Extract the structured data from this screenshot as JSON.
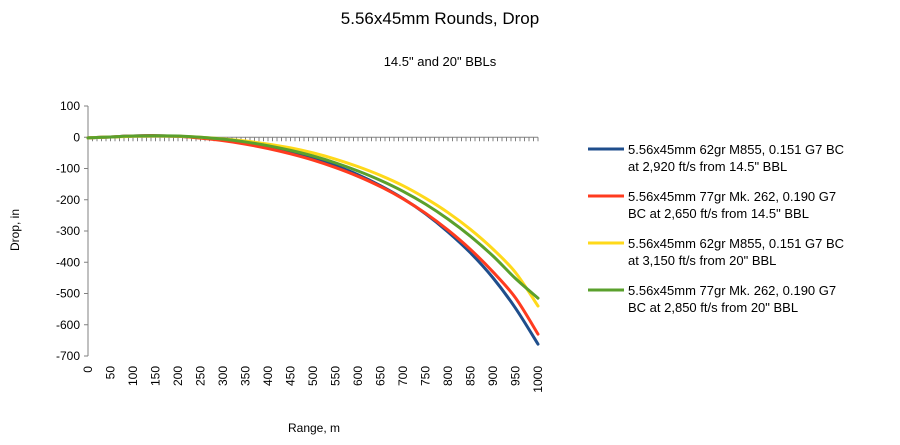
{
  "chart_data": {
    "type": "line",
    "title": "5.56x45mm Rounds, Drop",
    "subtitle": "14.5\" and 20\" BBLs",
    "xlabel": "Range, m",
    "ylabel": "Drop, in",
    "xlim": [
      0,
      1000
    ],
    "ylim": [
      -700,
      100
    ],
    "x_ticks": [
      "0",
      "50",
      "100",
      "150",
      "200",
      "250",
      "300",
      "350",
      "400",
      "450",
      "500",
      "550",
      "600",
      "650",
      "700",
      "750",
      "800",
      "850",
      "900",
      "950",
      "1000"
    ],
    "y_ticks": [
      "100",
      "0",
      "-100",
      "-200",
      "-300",
      "-400",
      "-500",
      "-600",
      "-700"
    ],
    "grid": false,
    "legend_position": "right",
    "x": [
      0,
      50,
      100,
      150,
      200,
      250,
      300,
      350,
      400,
      450,
      500,
      550,
      600,
      650,
      700,
      750,
      800,
      850,
      900,
      950,
      1000
    ],
    "series": [
      {
        "legend_lines": [
          "5.56x45mm 62gr M855, 0.151 G7 BC",
          "at 2,920 ft/s from 14.5\" BBL"
        ],
        "color": "#1f4e8c",
        "values": [
          -2,
          1,
          4,
          5,
          3,
          -2,
          -9,
          -19,
          -32,
          -48,
          -67,
          -91,
          -120,
          -155,
          -196,
          -245,
          -303,
          -370,
          -450,
          -547,
          -662
        ]
      },
      {
        "legend_lines": [
          "5.56x45mm 77gr Mk. 262, 0.190 G7",
          "BC at 2,650 ft/s from 14.5\" BBL"
        ],
        "color": "#ff3b1f",
        "values": [
          -2,
          1,
          4,
          5,
          3,
          -3,
          -11,
          -22,
          -36,
          -53,
          -73,
          -97,
          -125,
          -158,
          -197,
          -243,
          -297,
          -359,
          -431,
          -514,
          -630
        ]
      },
      {
        "legend_lines": [
          "5.56x45mm 62gr M855, 0.151 G7 BC",
          "at 3,150 ft/s from 20\" BBL"
        ],
        "color": "#ffd91a",
        "values": [
          -2,
          1,
          3,
          4,
          3,
          0,
          -5,
          -12,
          -22,
          -34,
          -50,
          -70,
          -94,
          -122,
          -155,
          -195,
          -241,
          -295,
          -358,
          -433,
          -540
        ]
      },
      {
        "legend_lines": [
          "5.56x45mm 77gr Mk. 262, 0.190 G7",
          "BC at 2,850 ft/s from 20\" BBL"
        ],
        "color": "#5aa02c",
        "values": [
          -2,
          1,
          4,
          5,
          4,
          0,
          -6,
          -15,
          -27,
          -42,
          -60,
          -82,
          -108,
          -138,
          -173,
          -214,
          -262,
          -317,
          -380,
          -452,
          -515
        ]
      }
    ]
  }
}
